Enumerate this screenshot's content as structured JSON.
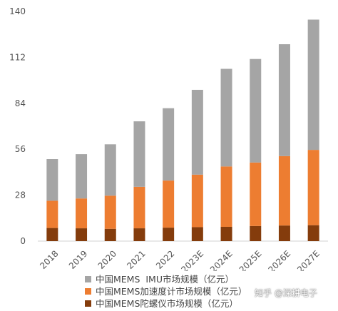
{
  "chart_data": {
    "type": "bar",
    "stacked": true,
    "categories": [
      "2018",
      "2019",
      "2020",
      "2021",
      "2022",
      "2023E",
      "2024E",
      "2025E",
      "2026E",
      "2027E"
    ],
    "series": [
      {
        "name": "中国MEMS陀螺仪市场规模（亿元）",
        "color": "#843c0c",
        "values": [
          8.0,
          7.8,
          7.5,
          7.8,
          8.2,
          8.5,
          8.7,
          9.2,
          9.5,
          9.7
        ]
      },
      {
        "name": "中国MEMS加速度计市场规模（亿元）",
        "color": "#ed7d31",
        "values": [
          16.6,
          18.2,
          20.2,
          25.3,
          28.7,
          32.0,
          36.8,
          38.7,
          42.3,
          45.9
        ]
      },
      {
        "name": "中国MEMS  IMU市场规模（亿元）",
        "color": "#a5a5a5",
        "values": [
          25.4,
          27.0,
          31.3,
          39.9,
          44.1,
          51.7,
          59.5,
          63.1,
          68.2,
          79.4
        ]
      }
    ],
    "yticks": [
      0,
      28,
      56,
      84,
      112,
      140
    ],
    "ylim": [
      0,
      140
    ],
    "grid": false,
    "legend_position": "bottom"
  },
  "legend_order": [
    2,
    1,
    0
  ],
  "watermark": "知乎 @深耕电子"
}
